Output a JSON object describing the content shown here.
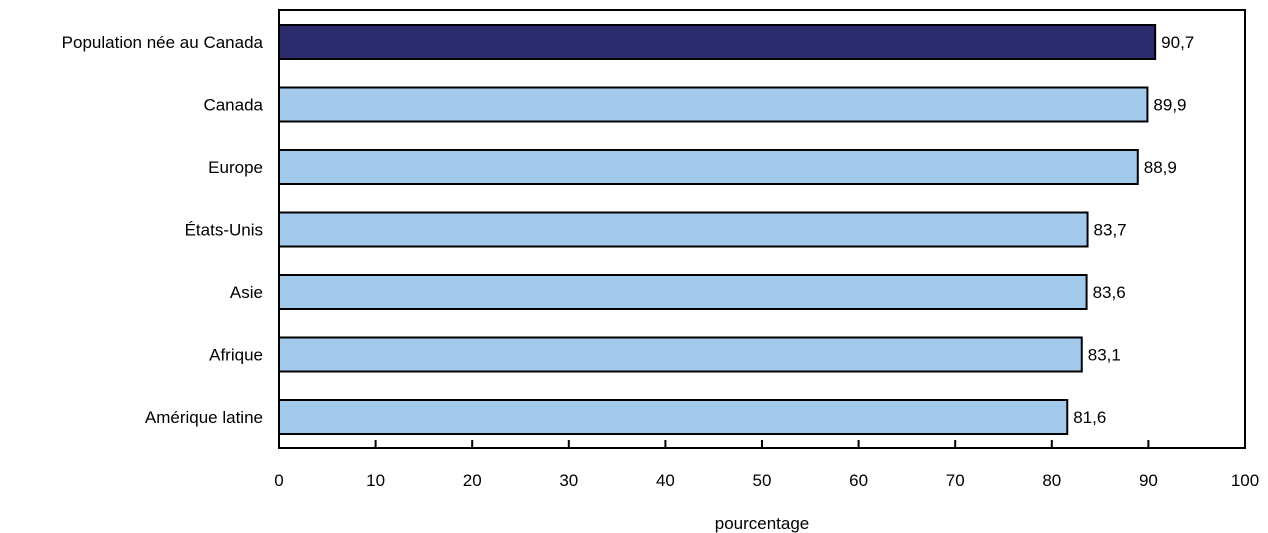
{
  "chart_data": {
    "type": "bar",
    "orientation": "horizontal",
    "categories": [
      "Population née au Canada",
      "Canada",
      "Europe",
      "États-Unis",
      "Asie",
      "Afrique",
      "Amérique latine"
    ],
    "values": [
      90.7,
      89.9,
      88.9,
      83.7,
      83.6,
      83.1,
      81.6
    ],
    "value_labels": [
      "90,7",
      "89,9",
      "88,9",
      "83,7",
      "83,6",
      "83,1",
      "81,6"
    ],
    "highlight_index": 0,
    "xlabel": "pourcentage",
    "ylabel": "",
    "xlim": [
      0,
      100
    ],
    "xticks": [
      0,
      10,
      20,
      30,
      40,
      50,
      60,
      70,
      80,
      90,
      100
    ],
    "grid": false,
    "colors": {
      "highlight": "#2a2c6e",
      "bar": "#a3c9eb",
      "outline": "#000000",
      "axis": "#000000"
    }
  }
}
